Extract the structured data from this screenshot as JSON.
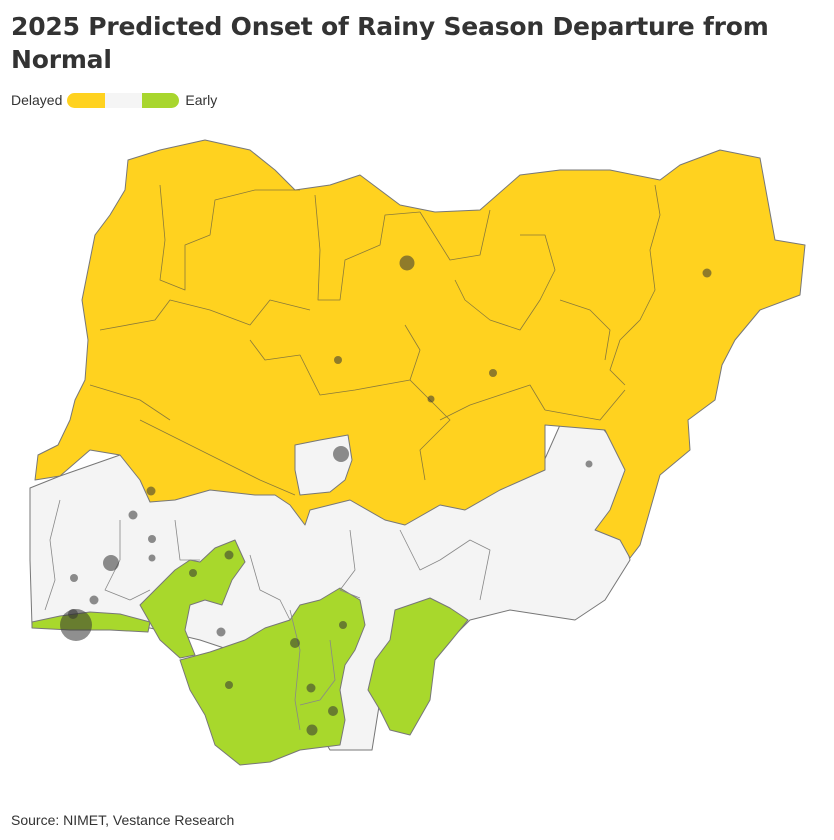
{
  "title": "2025 Predicted Onset of Rainy Season Departure from Normal",
  "legend": {
    "low_label": "Delayed",
    "high_label": "Early",
    "colors": [
      "#ffd21f",
      "#f5f5f5",
      "#a8d62e"
    ]
  },
  "source": "Source: NIMET, Vestance Research",
  "colors": {
    "delayed": "#ffd21f",
    "normal": "#f4f4f4",
    "early": "#a8d82c",
    "border": "#777777",
    "marker": "#333333"
  },
  "map": {
    "subject": "Nigeria states",
    "categories": [
      "Delayed",
      "Normal",
      "Early"
    ]
  }
}
